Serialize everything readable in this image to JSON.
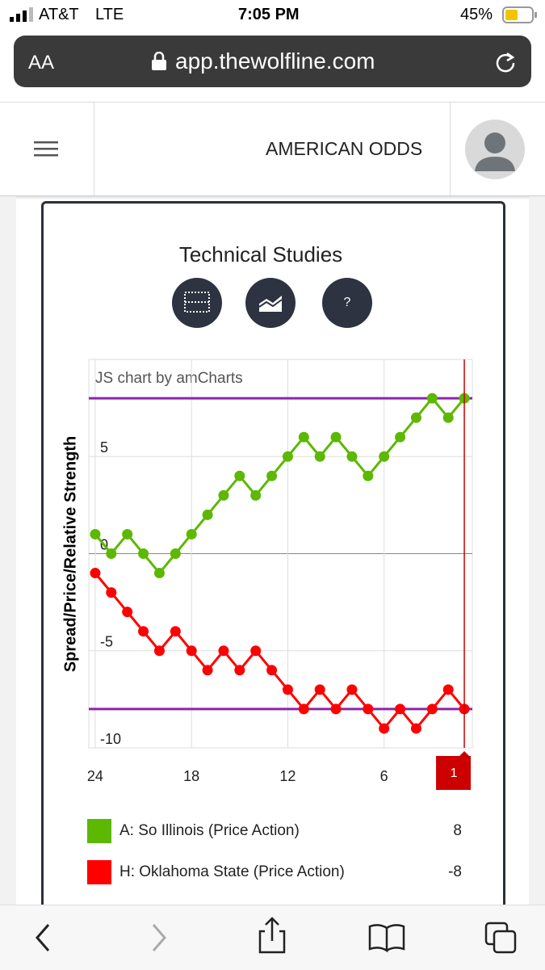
{
  "status": {
    "carrier": "AT&T",
    "network": "LTE",
    "time": "7:05 PM",
    "battery": "45%"
  },
  "browser": {
    "text_size": "AA",
    "url": "app.thewolfline.com"
  },
  "header": {
    "title": "AMERICAN ODDS"
  },
  "buttons": {
    "help": "?"
  },
  "chart_data": {
    "type": "line",
    "title": "Technical Studies",
    "credit": "JS chart by amCharts",
    "ylabel": "Spread/Price/Relative Strength",
    "x": [
      24,
      23,
      22,
      21,
      20,
      19,
      18,
      17,
      16,
      15,
      14,
      13,
      12,
      11,
      10,
      9,
      8,
      7,
      6,
      5,
      4,
      3,
      2,
      1
    ],
    "series": [
      {
        "name": "A: So Illinois (Price Action)",
        "color": "#5cb800",
        "values": [
          1,
          0,
          1,
          0,
          -1,
          0,
          1,
          2,
          3,
          4,
          3,
          4,
          5,
          6,
          5,
          6,
          5,
          4,
          5,
          6,
          7,
          8,
          7,
          8
        ]
      },
      {
        "name": "H: Oklahoma State (Price Action)",
        "color": "#ff0000",
        "values": [
          -1,
          -2,
          -3,
          -4,
          -5,
          -4,
          -5,
          -6,
          -5,
          -6,
          -5,
          -6,
          -7,
          -8,
          -7,
          -8,
          -7,
          -8,
          -9,
          -8,
          -9,
          -8,
          -7,
          -8
        ]
      }
    ],
    "xlim": [
      24.4,
      0.5
    ],
    "ylim": [
      -10,
      10
    ],
    "xticks": [
      24,
      18,
      12,
      6
    ],
    "yticks": [
      -10,
      -5,
      0,
      5
    ],
    "guides": [
      8,
      -8
    ],
    "guide_color": "#8e24aa",
    "cursor": 1,
    "cursor_color": "#cc0000",
    "grid": true
  }
}
